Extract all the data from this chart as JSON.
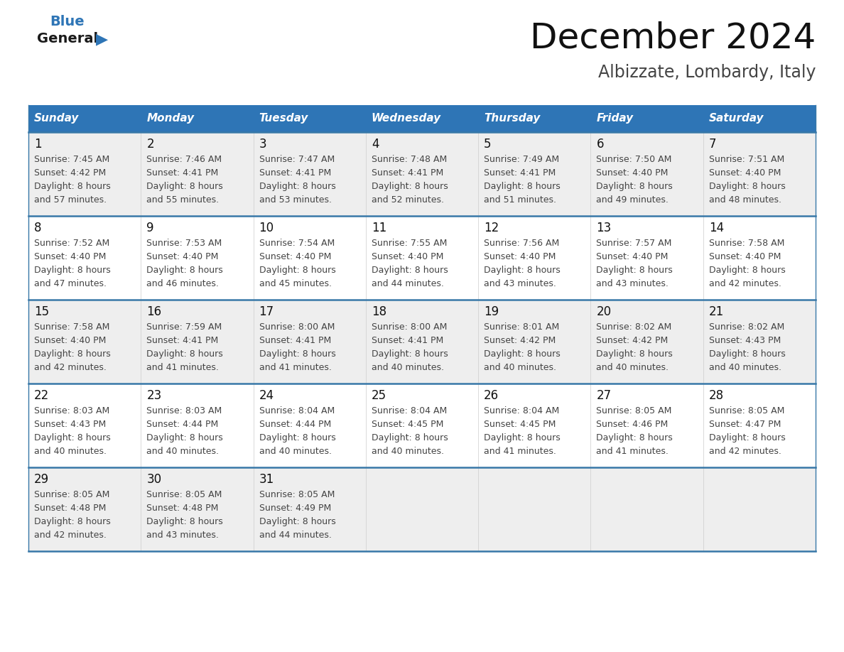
{
  "title": "December 2024",
  "subtitle": "Albizzate, Lombardy, Italy",
  "days_of_week": [
    "Sunday",
    "Monday",
    "Tuesday",
    "Wednesday",
    "Thursday",
    "Friday",
    "Saturday"
  ],
  "header_bg": "#2E75B6",
  "header_text": "#FFFFFF",
  "row_bg_odd": "#EEEEEE",
  "row_bg_even": "#FFFFFF",
  "cell_border_color": "#3878A8",
  "day_num_color": "#111111",
  "info_text_color": "#444444",
  "title_color": "#111111",
  "subtitle_color": "#444444",
  "logo_general_color": "#1a1a1a",
  "logo_blue_color": "#2E75B6",
  "weeks": [
    [
      {
        "day": 1,
        "sunrise": "7:45 AM",
        "sunset": "4:42 PM",
        "daylight": "8 hours and 57 minutes."
      },
      {
        "day": 2,
        "sunrise": "7:46 AM",
        "sunset": "4:41 PM",
        "daylight": "8 hours and 55 minutes."
      },
      {
        "day": 3,
        "sunrise": "7:47 AM",
        "sunset": "4:41 PM",
        "daylight": "8 hours and 53 minutes."
      },
      {
        "day": 4,
        "sunrise": "7:48 AM",
        "sunset": "4:41 PM",
        "daylight": "8 hours and 52 minutes."
      },
      {
        "day": 5,
        "sunrise": "7:49 AM",
        "sunset": "4:41 PM",
        "daylight": "8 hours and 51 minutes."
      },
      {
        "day": 6,
        "sunrise": "7:50 AM",
        "sunset": "4:40 PM",
        "daylight": "8 hours and 49 minutes."
      },
      {
        "day": 7,
        "sunrise": "7:51 AM",
        "sunset": "4:40 PM",
        "daylight": "8 hours and 48 minutes."
      }
    ],
    [
      {
        "day": 8,
        "sunrise": "7:52 AM",
        "sunset": "4:40 PM",
        "daylight": "8 hours and 47 minutes."
      },
      {
        "day": 9,
        "sunrise": "7:53 AM",
        "sunset": "4:40 PM",
        "daylight": "8 hours and 46 minutes."
      },
      {
        "day": 10,
        "sunrise": "7:54 AM",
        "sunset": "4:40 PM",
        "daylight": "8 hours and 45 minutes."
      },
      {
        "day": 11,
        "sunrise": "7:55 AM",
        "sunset": "4:40 PM",
        "daylight": "8 hours and 44 minutes."
      },
      {
        "day": 12,
        "sunrise": "7:56 AM",
        "sunset": "4:40 PM",
        "daylight": "8 hours and 43 minutes."
      },
      {
        "day": 13,
        "sunrise": "7:57 AM",
        "sunset": "4:40 PM",
        "daylight": "8 hours and 43 minutes."
      },
      {
        "day": 14,
        "sunrise": "7:58 AM",
        "sunset": "4:40 PM",
        "daylight": "8 hours and 42 minutes."
      }
    ],
    [
      {
        "day": 15,
        "sunrise": "7:58 AM",
        "sunset": "4:40 PM",
        "daylight": "8 hours and 42 minutes."
      },
      {
        "day": 16,
        "sunrise": "7:59 AM",
        "sunset": "4:41 PM",
        "daylight": "8 hours and 41 minutes."
      },
      {
        "day": 17,
        "sunrise": "8:00 AM",
        "sunset": "4:41 PM",
        "daylight": "8 hours and 41 minutes."
      },
      {
        "day": 18,
        "sunrise": "8:00 AM",
        "sunset": "4:41 PM",
        "daylight": "8 hours and 40 minutes."
      },
      {
        "day": 19,
        "sunrise": "8:01 AM",
        "sunset": "4:42 PM",
        "daylight": "8 hours and 40 minutes."
      },
      {
        "day": 20,
        "sunrise": "8:02 AM",
        "sunset": "4:42 PM",
        "daylight": "8 hours and 40 minutes."
      },
      {
        "day": 21,
        "sunrise": "8:02 AM",
        "sunset": "4:43 PM",
        "daylight": "8 hours and 40 minutes."
      }
    ],
    [
      {
        "day": 22,
        "sunrise": "8:03 AM",
        "sunset": "4:43 PM",
        "daylight": "8 hours and 40 minutes."
      },
      {
        "day": 23,
        "sunrise": "8:03 AM",
        "sunset": "4:44 PM",
        "daylight": "8 hours and 40 minutes."
      },
      {
        "day": 24,
        "sunrise": "8:04 AM",
        "sunset": "4:44 PM",
        "daylight": "8 hours and 40 minutes."
      },
      {
        "day": 25,
        "sunrise": "8:04 AM",
        "sunset": "4:45 PM",
        "daylight": "8 hours and 40 minutes."
      },
      {
        "day": 26,
        "sunrise": "8:04 AM",
        "sunset": "4:45 PM",
        "daylight": "8 hours and 41 minutes."
      },
      {
        "day": 27,
        "sunrise": "8:05 AM",
        "sunset": "4:46 PM",
        "daylight": "8 hours and 41 minutes."
      },
      {
        "day": 28,
        "sunrise": "8:05 AM",
        "sunset": "4:47 PM",
        "daylight": "8 hours and 42 minutes."
      }
    ],
    [
      {
        "day": 29,
        "sunrise": "8:05 AM",
        "sunset": "4:48 PM",
        "daylight": "8 hours and 42 minutes."
      },
      {
        "day": 30,
        "sunrise": "8:05 AM",
        "sunset": "4:48 PM",
        "daylight": "8 hours and 43 minutes."
      },
      {
        "day": 31,
        "sunrise": "8:05 AM",
        "sunset": "4:49 PM",
        "daylight": "8 hours and 44 minutes."
      },
      null,
      null,
      null,
      null
    ]
  ]
}
